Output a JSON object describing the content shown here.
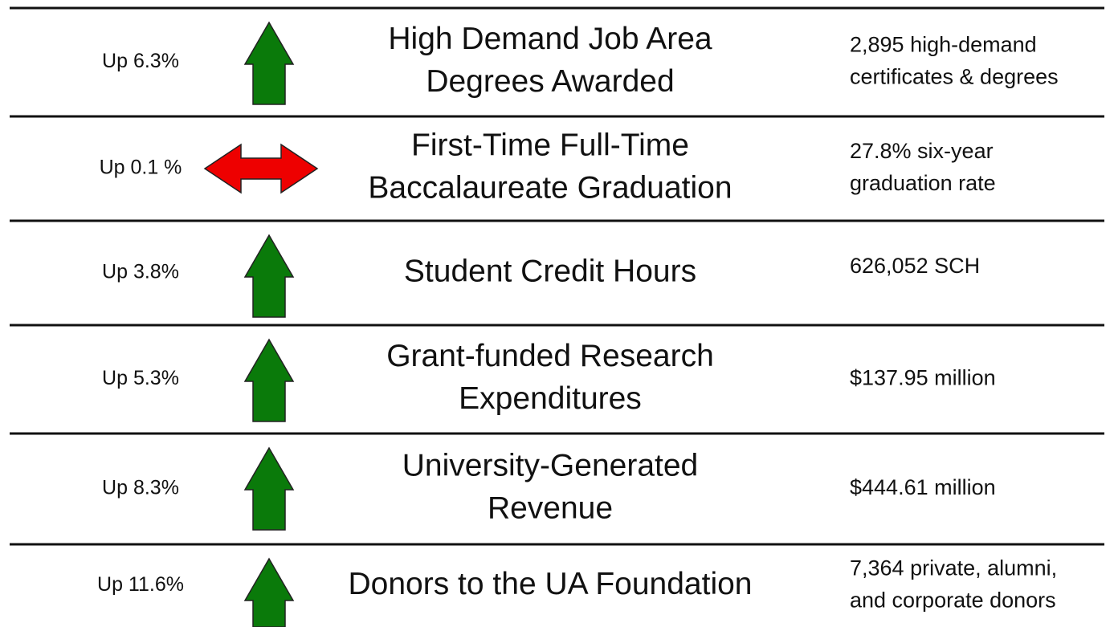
{
  "rows": [
    {
      "change": "Up 6.3%",
      "arrow": "up",
      "color": "#0a7a0a",
      "title": [
        "High Demand Job Area",
        "Degrees Awarded"
      ],
      "value": [
        "2,895 high-demand",
        "certificates & degrees"
      ]
    },
    {
      "change": "Up 0.1 %",
      "arrow": "left-right",
      "color": "#ee0000",
      "title": [
        "First-Time Full-Time",
        "Baccalaureate Graduation"
      ],
      "value": [
        "27.8% six-year",
        "graduation rate"
      ]
    },
    {
      "change": "Up 3.8%",
      "arrow": "up",
      "color": "#0a7a0a",
      "title": [
        "Student Credit Hours"
      ],
      "value": [
        "626,052 SCH"
      ]
    },
    {
      "change": "Up 5.3%",
      "arrow": "up",
      "color": "#0a7a0a",
      "title": [
        "Grant-funded Research",
        "Expenditures"
      ],
      "value": [
        "$137.95 million"
      ]
    },
    {
      "change": "Up 8.3%",
      "arrow": "up",
      "color": "#0a7a0a",
      "title": [
        "University-Generated",
        "Revenue"
      ],
      "value": [
        "$444.61 million"
      ]
    },
    {
      "change": "Up 11.6%",
      "arrow": "up",
      "color": "#0a7a0a",
      "title": [
        "Donors to the UA Foundation"
      ],
      "value": [
        "7,364 private, alumni,",
        "and corporate donors"
      ]
    }
  ]
}
